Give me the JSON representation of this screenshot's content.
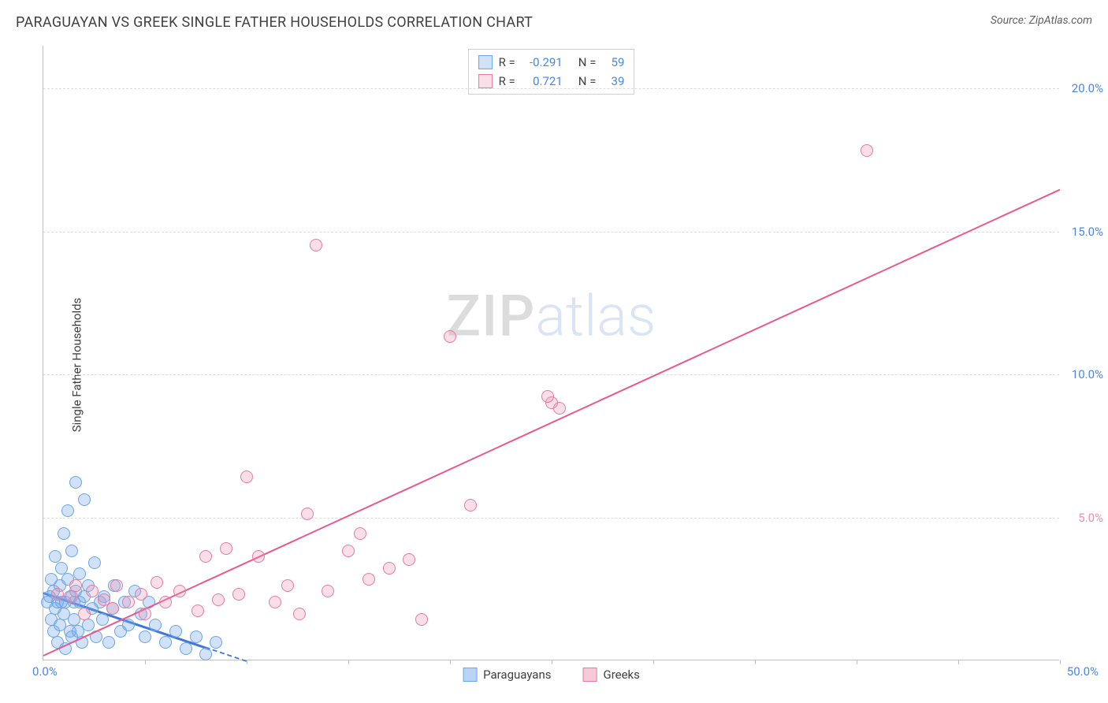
{
  "header": {
    "title": "PARAGUAYAN VS GREEK SINGLE FATHER HOUSEHOLDS CORRELATION CHART",
    "source_prefix": "Source: ",
    "source_name": "ZipAtlas.com"
  },
  "ylabel": "Single Father Households",
  "watermark": {
    "part1": "ZIP",
    "part2": "atlas"
  },
  "chart": {
    "type": "scatter",
    "xlim": [
      0,
      50
    ],
    "ylim": [
      0,
      21.5
    ],
    "xtick_positions": [
      0,
      5,
      10,
      15,
      20,
      25,
      30,
      35,
      40,
      45,
      50
    ],
    "xtick_origin_label": "0.0%",
    "xtick_max_label": "50.0%",
    "ygrid": [
      {
        "value": 5,
        "label": "5.0%",
        "color": "#e88fae"
      },
      {
        "value": 10,
        "label": "10.0%",
        "color": "#4a86e8"
      },
      {
        "value": 15,
        "label": "15.0%",
        "color": "#4a86e8"
      },
      {
        "value": 20,
        "label": "20.0%",
        "color": "#4a86e8"
      }
    ],
    "background_color": "#ffffff",
    "grid_color": "#dcdcdc",
    "axis_color": "#c0c0c0",
    "marker_radius": 8,
    "marker_border_width": 1.2,
    "series": [
      {
        "name": "Paraguayans",
        "fill": "rgba(120,170,235,0.35)",
        "stroke": "#6aa6e8",
        "R": "-0.291",
        "N": "59",
        "trend": {
          "x1": 0,
          "y1": 2.4,
          "x2": 10,
          "y2": 0,
          "color": "#3f78d8",
          "dashed_after_x": 8.2
        },
        "points": [
          [
            0.2,
            2.0
          ],
          [
            0.3,
            2.2
          ],
          [
            0.4,
            1.4
          ],
          [
            0.4,
            2.8
          ],
          [
            0.5,
            1.0
          ],
          [
            0.5,
            2.4
          ],
          [
            0.6,
            3.6
          ],
          [
            0.6,
            1.8
          ],
          [
            0.7,
            0.6
          ],
          [
            0.7,
            2.0
          ],
          [
            0.8,
            2.6
          ],
          [
            0.8,
            1.2
          ],
          [
            0.9,
            3.2
          ],
          [
            0.9,
            2.0
          ],
          [
            1.0,
            4.4
          ],
          [
            1.0,
            1.6
          ],
          [
            1.1,
            2.0
          ],
          [
            1.1,
            0.4
          ],
          [
            1.2,
            5.2
          ],
          [
            1.2,
            2.8
          ],
          [
            1.3,
            1.0
          ],
          [
            1.3,
            2.2
          ],
          [
            1.4,
            3.8
          ],
          [
            1.4,
            0.8
          ],
          [
            1.5,
            2.0
          ],
          [
            1.5,
            1.4
          ],
          [
            1.6,
            6.2
          ],
          [
            1.6,
            2.4
          ],
          [
            1.7,
            1.0
          ],
          [
            1.8,
            2.0
          ],
          [
            1.8,
            3.0
          ],
          [
            1.9,
            0.6
          ],
          [
            2.0,
            5.6
          ],
          [
            2.0,
            2.2
          ],
          [
            2.2,
            1.2
          ],
          [
            2.2,
            2.6
          ],
          [
            2.4,
            1.8
          ],
          [
            2.5,
            3.4
          ],
          [
            2.6,
            0.8
          ],
          [
            2.8,
            2.0
          ],
          [
            2.9,
            1.4
          ],
          [
            3.0,
            2.2
          ],
          [
            3.2,
            0.6
          ],
          [
            3.4,
            1.8
          ],
          [
            3.5,
            2.6
          ],
          [
            3.8,
            1.0
          ],
          [
            4.0,
            2.0
          ],
          [
            4.2,
            1.2
          ],
          [
            4.5,
            2.4
          ],
          [
            4.8,
            1.6
          ],
          [
            5.0,
            0.8
          ],
          [
            5.2,
            2.0
          ],
          [
            5.5,
            1.2
          ],
          [
            6.0,
            0.6
          ],
          [
            6.5,
            1.0
          ],
          [
            7.0,
            0.4
          ],
          [
            7.5,
            0.8
          ],
          [
            8.0,
            0.2
          ],
          [
            8.5,
            0.6
          ]
        ]
      },
      {
        "name": "Greeks",
        "fill": "rgba(240,150,180,0.30)",
        "stroke": "#e67aa0",
        "R": "0.721",
        "N": "39",
        "trend": {
          "x1": 0,
          "y1": 0.2,
          "x2": 50,
          "y2": 16.5,
          "color": "#e85a8f",
          "dashed_after_x": null
        },
        "points": [
          [
            0.7,
            2.3
          ],
          [
            1.4,
            2.2
          ],
          [
            1.6,
            2.6
          ],
          [
            2.0,
            1.6
          ],
          [
            2.4,
            2.4
          ],
          [
            3.0,
            2.1
          ],
          [
            3.4,
            1.8
          ],
          [
            3.6,
            2.6
          ],
          [
            4.2,
            2.0
          ],
          [
            4.8,
            2.3
          ],
          [
            5.0,
            1.6
          ],
          [
            5.6,
            2.7
          ],
          [
            6.0,
            2.0
          ],
          [
            6.7,
            2.4
          ],
          [
            7.6,
            1.7
          ],
          [
            8.0,
            3.6
          ],
          [
            8.6,
            2.1
          ],
          [
            9.0,
            3.9
          ],
          [
            9.6,
            2.3
          ],
          [
            10.0,
            6.4
          ],
          [
            10.6,
            3.6
          ],
          [
            11.4,
            2.0
          ],
          [
            12.0,
            2.6
          ],
          [
            12.6,
            1.6
          ],
          [
            13.0,
            5.1
          ],
          [
            13.4,
            14.5
          ],
          [
            14.0,
            2.4
          ],
          [
            15.0,
            3.8
          ],
          [
            15.6,
            4.4
          ],
          [
            16.0,
            2.8
          ],
          [
            17.0,
            3.2
          ],
          [
            18.0,
            3.5
          ],
          [
            18.6,
            1.4
          ],
          [
            20.0,
            11.3
          ],
          [
            21.0,
            5.4
          ],
          [
            25.0,
            9.0
          ],
          [
            25.4,
            8.8
          ],
          [
            24.8,
            9.2
          ],
          [
            40.5,
            17.8
          ]
        ]
      }
    ],
    "legend_bottom": [
      {
        "label": "Paraguayans",
        "fill": "rgba(120,170,235,0.5)",
        "stroke": "#6aa6e8"
      },
      {
        "label": "Greeks",
        "fill": "rgba(240,150,180,0.5)",
        "stroke": "#e67aa0"
      }
    ]
  }
}
